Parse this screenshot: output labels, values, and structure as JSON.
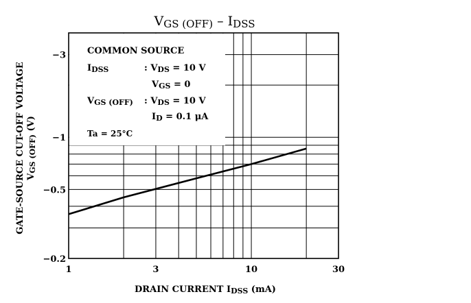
{
  "chart_data": {
    "type": "line",
    "title_main": "V",
    "title_main_sub": "GS (OFF)",
    "title_dash": "–",
    "title_i": "I",
    "title_i_sub": "DSS",
    "xlabel": "DRAIN CURRENT",
    "xlabel_symbol": "I",
    "xlabel_symbol_sub": "DSS",
    "xlabel_unit": "(mA)",
    "ylabel": "GATE-SOURCE CUT-OFF VOLTAGE",
    "ylabel_symbol": "V",
    "ylabel_symbol_sub": "GS (OFF)",
    "ylabel_unit": "(V)",
    "x_scale": "log",
    "y_scale": "log (magnitude, negative values)",
    "xlim": [
      1,
      30
    ],
    "ylim": [
      -0.2,
      -4
    ],
    "x_ticks": [
      1,
      3,
      10,
      30
    ],
    "x_tick_labels": [
      "1",
      "3",
      "10",
      "30"
    ],
    "y_ticks": [
      -3,
      -1,
      -0.5,
      -0.2
    ],
    "y_tick_labels": [
      "−3",
      "−1",
      "−0.5",
      "−0.2"
    ],
    "grid": true,
    "series": [
      {
        "x": [
          1,
          2,
          5,
          10,
          20
        ],
        "y": [
          -0.36,
          -0.45,
          -0.58,
          -0.7,
          -0.86
        ]
      }
    ],
    "conditions": {
      "common_source": "COMMON SOURCE",
      "idss": "I",
      "idss_sub": "DSS",
      "idss_cond1": ": V",
      "idss_cond1_sub": "DS",
      "idss_cond1_val": " = 10 V",
      "idss_cond2": "V",
      "idss_cond2_sub": "GS",
      "idss_cond2_val": " = 0",
      "vgs": "V",
      "vgs_sub": "GS (OFF)",
      "vgs_cond1": ": V",
      "vgs_cond1_sub": "DS",
      "vgs_cond1_val": " = 10 V",
      "vgs_cond2": "I",
      "vgs_cond2_sub": "D",
      "vgs_cond2_val": " = 0.1 μA",
      "ta": "Ta = 25°C"
    }
  }
}
